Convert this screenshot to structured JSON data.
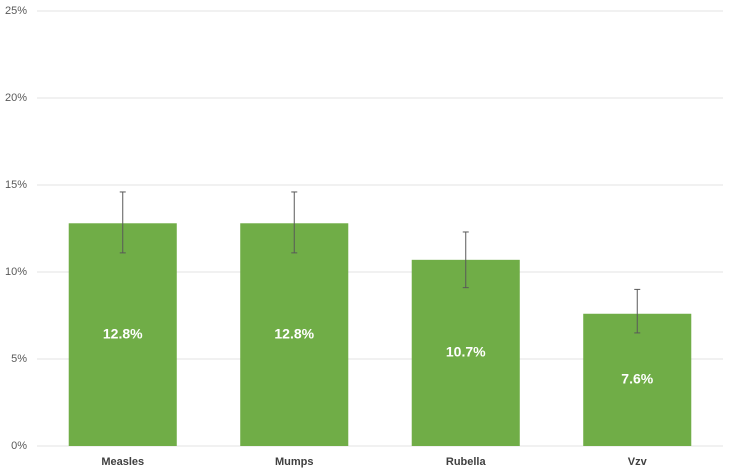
{
  "chart_data": {
    "type": "bar",
    "categories": [
      "Measles",
      "Mumps",
      "Rubella",
      "Vzv"
    ],
    "values": [
      12.8,
      12.8,
      10.7,
      7.6
    ],
    "value_labels": [
      "12.8%",
      "12.8%",
      "10.7%",
      "7.6%"
    ],
    "error_minus": [
      1.7,
      1.7,
      1.6,
      1.1
    ],
    "error_plus": [
      1.8,
      1.8,
      1.6,
      1.4
    ],
    "color": "#70ad47",
    "ylim": [
      0,
      25
    ],
    "yticks": [
      {
        "value": 0,
        "label": "0%"
      },
      {
        "value": 5,
        "label": "5%"
      },
      {
        "value": 10,
        "label": "10%"
      },
      {
        "value": 15,
        "label": "15%"
      },
      {
        "value": 20,
        "label": "20%"
      },
      {
        "value": 25,
        "label": "25%"
      }
    ],
    "grid": true
  }
}
